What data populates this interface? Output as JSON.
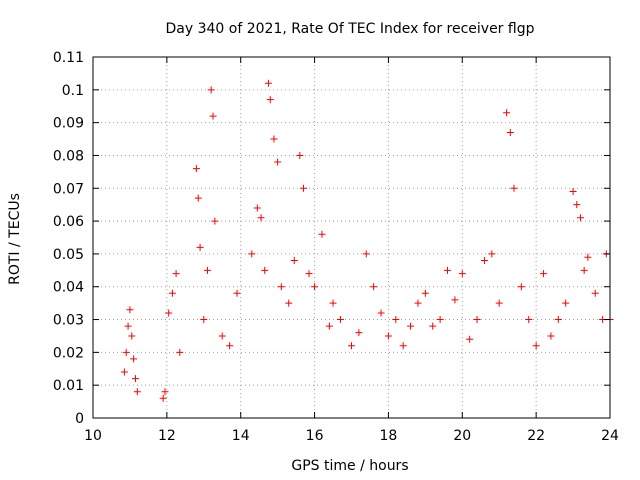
{
  "chart_data": {
    "type": "scatter",
    "title": "Day 340 of 2021, Rate Of TEC Index for receiver flgp",
    "xlabel": "GPS time / hours",
    "ylabel": "ROTI / TECUs",
    "xlim": [
      10,
      24
    ],
    "ylim": [
      0,
      0.11
    ],
    "xticks": [
      10,
      12,
      14,
      16,
      18,
      20,
      22,
      24
    ],
    "xtick_labels": [
      "10",
      "12",
      "14",
      "16",
      "18",
      "20",
      "22",
      "24"
    ],
    "yticks": [
      0,
      0.01,
      0.02,
      0.03,
      0.04,
      0.05,
      0.06,
      0.07,
      0.08,
      0.09,
      0.1,
      0.11
    ],
    "ytick_labels": [
      "0",
      "0.01",
      "0.02",
      "0.03",
      "0.04",
      "0.05",
      "0.06",
      "0.07",
      "0.08",
      "0.09",
      "0.1",
      "0.11"
    ],
    "grid": true,
    "marker": "+",
    "series_color": "#ff0000",
    "series": [
      {
        "name": "ROTI",
        "color": "#ff0000",
        "x": [
          10.85,
          10.9,
          10.95,
          11.0,
          11.05,
          11.1,
          11.15,
          11.2,
          11.9,
          11.95,
          12.05,
          12.15,
          12.25,
          12.35,
          12.8,
          12.85,
          12.9,
          13.0,
          13.1,
          13.2,
          13.25,
          13.3,
          13.5,
          13.7,
          13.9,
          14.3,
          14.45,
          14.55,
          14.65,
          14.75,
          14.8,
          14.9,
          15.0,
          15.1,
          15.3,
          15.45,
          15.6,
          15.7,
          15.85,
          16.0,
          16.2,
          16.4,
          16.5,
          16.7,
          17.0,
          17.2,
          17.4,
          17.6,
          17.8,
          18.0,
          18.2,
          18.4,
          18.6,
          18.8,
          19.0,
          19.2,
          19.4,
          19.6,
          19.8,
          20.0,
          20.2,
          20.4,
          20.6,
          20.8,
          21.0,
          21.2,
          21.3,
          21.4,
          21.6,
          21.8,
          22.0,
          22.2,
          22.4,
          22.6,
          22.8,
          23.0,
          23.1,
          23.2,
          23.3,
          23.4,
          23.6,
          23.8,
          23.9,
          24.0
        ],
        "y": [
          0.014,
          0.02,
          0.028,
          0.033,
          0.025,
          0.018,
          0.012,
          0.008,
          0.006,
          0.008,
          0.032,
          0.038,
          0.044,
          0.02,
          0.076,
          0.067,
          0.052,
          0.03,
          0.045,
          0.1,
          0.092,
          0.06,
          0.025,
          0.022,
          0.038,
          0.05,
          0.064,
          0.061,
          0.045,
          0.102,
          0.097,
          0.085,
          0.078,
          0.04,
          0.035,
          0.048,
          0.08,
          0.07,
          0.044,
          0.04,
          0.056,
          0.028,
          0.035,
          0.03,
          0.022,
          0.026,
          0.05,
          0.04,
          0.032,
          0.025,
          0.03,
          0.022,
          0.028,
          0.035,
          0.038,
          0.028,
          0.03,
          0.045,
          0.036,
          0.044,
          0.024,
          0.03,
          0.048,
          0.05,
          0.035,
          0.093,
          0.087,
          0.07,
          0.04,
          0.03,
          0.022,
          0.044,
          0.025,
          0.03,
          0.035,
          0.069,
          0.065,
          0.061,
          0.045,
          0.049,
          0.038,
          0.03,
          0.05,
          0.03
        ]
      }
    ]
  }
}
